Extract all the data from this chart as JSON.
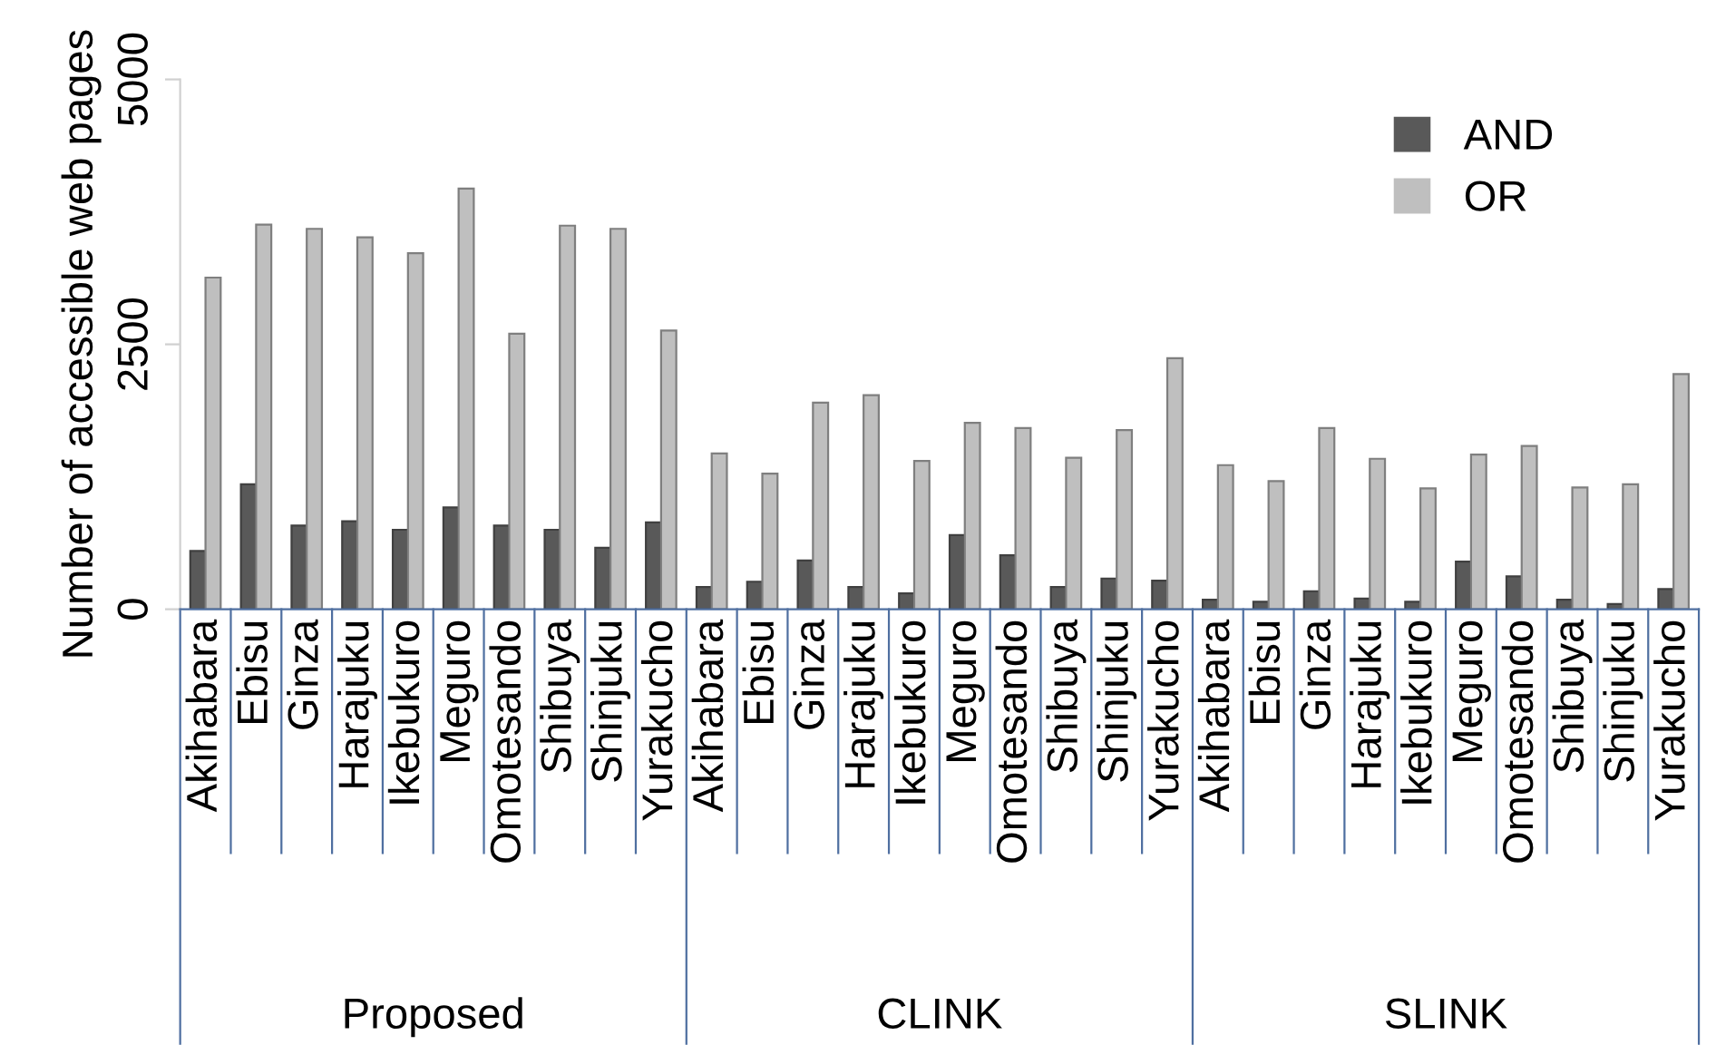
{
  "chart_data": {
    "type": "bar",
    "ylabel": "Number of accessible web pages",
    "categories": [
      "Akihabara",
      "Ebisu",
      "Ginza",
      "Harajuku",
      "Ikebukuro",
      "Meguro",
      "Omotesando",
      "Shibuya",
      "Shinjuku",
      "Yurakucho",
      "Akihabara",
      "Ebisu",
      "Ginza",
      "Harajuku",
      "Ikebukuro",
      "Meguro",
      "Omotesando",
      "Shibuya",
      "Shinjuku",
      "Yurakucho",
      "Akihabara",
      "Ebisu",
      "Ginza",
      "Harajuku",
      "Ikebukuro",
      "Meguro",
      "Omotesando",
      "Shibuya",
      "Shinjuku",
      "Yurakucho"
    ],
    "series": [
      {
        "name": "AND",
        "color": "#595959",
        "values": [
          550,
          1180,
          790,
          830,
          750,
          960,
          790,
          750,
          580,
          820,
          210,
          260,
          460,
          210,
          150,
          700,
          510,
          210,
          290,
          270,
          90,
          70,
          170,
          100,
          70,
          450,
          310,
          90,
          50,
          190
        ]
      },
      {
        "name": "OR",
        "color": "#bfbfbf",
        "values": [
          3130,
          3630,
          3590,
          3510,
          3360,
          3970,
          2600,
          3620,
          3590,
          2630,
          1470,
          1280,
          1950,
          2020,
          1400,
          1760,
          1710,
          1430,
          1690,
          2370,
          1360,
          1210,
          1710,
          1420,
          1140,
          1460,
          1540,
          1150,
          1180,
          2220
        ]
      }
    ],
    "annotations": [
      "Proposed",
      "CLINK",
      "SLINK"
    ],
    "ylim": [
      0,
      5000
    ],
    "yticks": [
      0,
      2500,
      5000
    ],
    "grid": false,
    "legend": "top right"
  }
}
